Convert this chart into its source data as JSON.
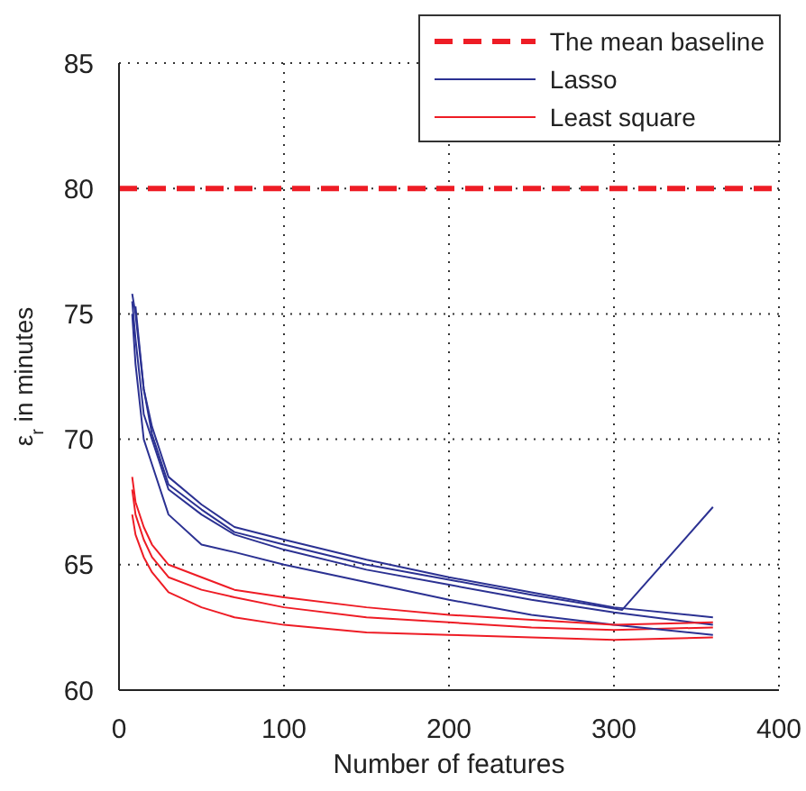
{
  "chart_data": {
    "type": "line",
    "xlabel": "Number of features",
    "ylabel": "ε$_{r}$ in minutes",
    "xlim": [
      0,
      400
    ],
    "xticks": [
      0,
      100,
      200,
      300,
      400
    ],
    "ylim": [
      60,
      85
    ],
    "yticks": [
      60,
      65,
      70,
      75,
      80,
      85
    ],
    "grid": true,
    "legend": "top right",
    "marker": "none",
    "series": [
      {
        "name": "The mean baseline",
        "color": "#ee1c25",
        "line_style": "dashed",
        "x": [
          0,
          400
        ],
        "values": [
          80,
          80
        ]
      },
      {
        "name": "Lasso",
        "color": "#2b3192",
        "x": [
          8,
          10,
          15,
          20,
          30,
          50,
          70,
          100,
          150,
          200,
          250,
          300,
          360
        ],
        "values": [
          75.5,
          74,
          71,
          70,
          68,
          67,
          66.2,
          65.6,
          64.8,
          64.2,
          63.6,
          63.1,
          62.6
        ]
      },
      {
        "name": "Least square",
        "color": "#ee1c25",
        "x": [
          8,
          10,
          15,
          20,
          30,
          50,
          70,
          100,
          150,
          200,
          250,
          300,
          360
        ],
        "values": [
          68,
          67,
          66,
          65.3,
          64.5,
          64,
          63.7,
          63.3,
          62.9,
          62.7,
          62.5,
          62.4,
          62.5
        ]
      },
      {
        "color": "#2b3192",
        "x": [
          8,
          10,
          15,
          20,
          30,
          50,
          70,
          100,
          150,
          200,
          250,
          300,
          360
        ],
        "values": [
          75.8,
          75,
          72,
          70.5,
          68.5,
          67.4,
          66.5,
          66,
          65.2,
          64.5,
          63.9,
          63.3,
          62.9
        ]
      },
      {
        "color": "#2b3192",
        "x": [
          8,
          10,
          15,
          20,
          30,
          50,
          70,
          100,
          150,
          200,
          250,
          300,
          360
        ],
        "values": [
          75,
          73,
          70,
          69,
          67,
          65.8,
          65.5,
          65,
          64.3,
          63.6,
          63,
          62.6,
          62.2
        ]
      },
      {
        "color": "#2b3192",
        "x": [
          10,
          15,
          20,
          30,
          50,
          70,
          100,
          150,
          200,
          250,
          305,
          360
        ],
        "values": [
          75.3,
          72,
          70.2,
          68.2,
          67.2,
          66.3,
          65.8,
          65,
          64.4,
          63.8,
          63.2,
          67.3
        ]
      },
      {
        "color": "#ee1c25",
        "x": [
          8,
          10,
          15,
          20,
          30,
          50,
          70,
          100,
          150,
          200,
          250,
          300,
          360
        ],
        "values": [
          68.5,
          67.5,
          66.5,
          65.8,
          65,
          64.5,
          64,
          63.7,
          63.3,
          63,
          62.8,
          62.6,
          62.7
        ]
      },
      {
        "color": "#ee1c25",
        "x": [
          8,
          10,
          15,
          20,
          30,
          50,
          70,
          100,
          150,
          200,
          250,
          300,
          360
        ],
        "values": [
          67,
          66.2,
          65.3,
          64.7,
          63.9,
          63.3,
          62.9,
          62.6,
          62.3,
          62.2,
          62.1,
          62,
          62.1
        ]
      }
    ]
  }
}
